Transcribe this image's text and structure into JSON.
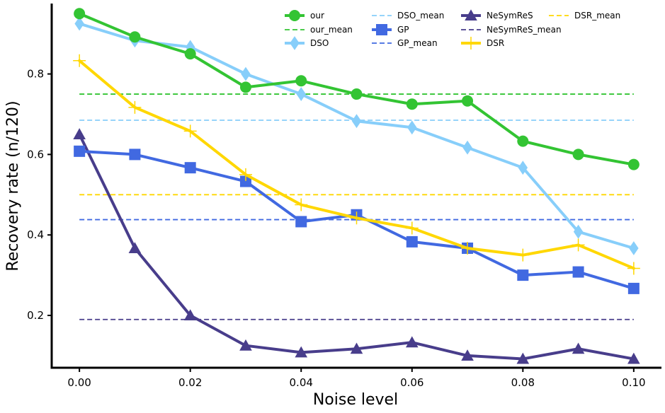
{
  "chart_data": {
    "type": "line",
    "xlabel": "Noise level",
    "ylabel": "Recovery rate (n/120)",
    "xlim": [
      -0.005,
      0.105
    ],
    "ylim": [
      0.07,
      0.975
    ],
    "x": [
      0.0,
      0.01,
      0.02,
      0.03,
      0.04,
      0.05,
      0.06,
      0.07,
      0.08,
      0.09,
      0.1
    ],
    "x_ticks": [
      "0.00",
      "0.02",
      "0.04",
      "0.06",
      "0.08",
      "0.10"
    ],
    "y_ticks": [
      "0.2",
      "0.4",
      "0.6",
      "0.8"
    ],
    "legend_position": "top-right",
    "grid": false,
    "series": [
      {
        "name": "our",
        "color": "#33c433",
        "marker": "circle",
        "values": [
          0.95,
          0.892,
          0.85,
          0.767,
          0.783,
          0.75,
          0.725,
          0.733,
          0.633,
          0.6,
          0.575
        ]
      },
      {
        "name": "DSO",
        "color": "#87cefa",
        "marker": "diamond",
        "values": [
          0.925,
          0.883,
          0.867,
          0.8,
          0.75,
          0.683,
          0.667,
          0.617,
          0.567,
          0.408,
          0.367
        ]
      },
      {
        "name": "GP",
        "color": "#4169e1",
        "marker": "square",
        "values": [
          0.608,
          0.6,
          0.567,
          0.533,
          0.433,
          0.45,
          0.383,
          0.367,
          0.3,
          0.308,
          0.267
        ]
      },
      {
        "name": "NeSymReS",
        "color": "#483d8b",
        "marker": "triangle",
        "values": [
          0.65,
          0.367,
          0.2,
          0.125,
          0.108,
          0.117,
          0.133,
          0.1,
          0.092,
          0.117,
          0.092
        ]
      },
      {
        "name": "DSR",
        "color": "#ffd700",
        "marker": "plus",
        "values": [
          0.833,
          0.717,
          0.658,
          0.55,
          0.475,
          0.442,
          0.417,
          0.367,
          0.35,
          0.375,
          0.317
        ]
      }
    ],
    "mean_lines": [
      {
        "name": "our_mean",
        "color": "#33c433",
        "value": 0.75
      },
      {
        "name": "DSO_mean",
        "color": "#87cefa",
        "value": 0.685
      },
      {
        "name": "GP_mean",
        "color": "#4169e1",
        "value": 0.438
      },
      {
        "name": "NeSymReS_mean",
        "color": "#483d8b",
        "value": 0.19
      },
      {
        "name": "DSR_mean",
        "color": "#ffd700",
        "value": 0.5
      }
    ]
  }
}
